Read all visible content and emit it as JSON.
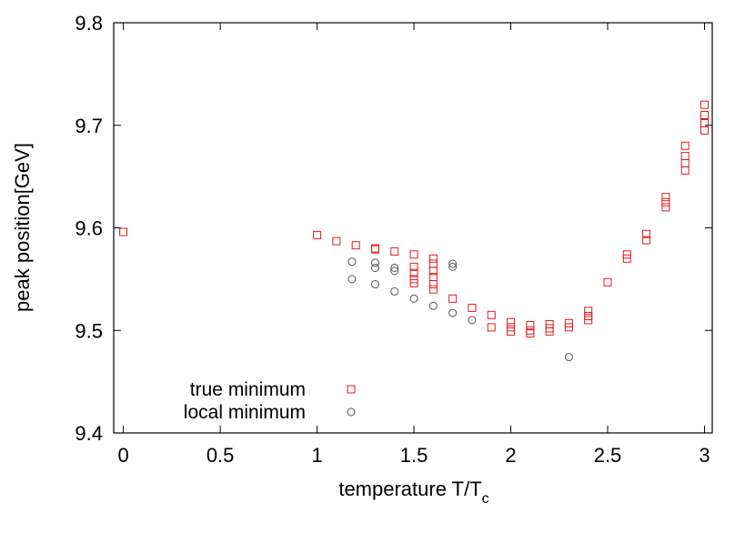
{
  "chart_data": {
    "type": "scatter",
    "xlabel": "temperature T/T",
    "xlabel_subscript": "c",
    "ylabel": "peak position[GeV]",
    "xlim": [
      -0.05,
      3.04
    ],
    "xticks": [
      0,
      0.5,
      1,
      1.5,
      2,
      2.5,
      3
    ],
    "ylim": [
      9.4,
      9.8
    ],
    "yticks": [
      9.4,
      9.5,
      9.6,
      9.7,
      9.8
    ],
    "grid": false,
    "legend": "lower left",
    "series": [
      {
        "name": "true minimum",
        "color": "#e41a1c",
        "marker": "square",
        "x": [
          0,
          1,
          1.1,
          1.2,
          1.3,
          1.3,
          1.4,
          1.5,
          1.5,
          1.5,
          1.5,
          1.5,
          1.6,
          1.6,
          1.6,
          1.6,
          1.6,
          1.6,
          1.7,
          1.8,
          1.9,
          1.9,
          2.0,
          2.0,
          2.0,
          2.1,
          2.1,
          2.1,
          2.2,
          2.2,
          2.2,
          2.3,
          2.3,
          2.4,
          2.4,
          2.4,
          2.5,
          2.6,
          2.6,
          2.7,
          2.7,
          2.8,
          2.8,
          2.8,
          2.9,
          2.9,
          2.9,
          2.9,
          3.0,
          3.0,
          3.0,
          3.0
        ],
        "values": [
          9.596,
          9.593,
          9.587,
          9.583,
          9.58,
          9.579,
          9.577,
          9.574,
          9.562,
          9.556,
          9.55,
          9.546,
          9.57,
          9.565,
          9.558,
          9.552,
          9.545,
          9.54,
          9.531,
          9.522,
          9.515,
          9.503,
          9.508,
          9.503,
          9.499,
          9.505,
          9.5,
          9.497,
          9.506,
          9.502,
          9.499,
          9.507,
          9.503,
          9.519,
          9.514,
          9.51,
          9.547,
          9.574,
          9.57,
          9.594,
          9.588,
          9.63,
          9.625,
          9.62,
          9.68,
          9.67,
          9.663,
          9.656,
          9.72,
          9.71,
          9.702,
          9.695
        ]
      },
      {
        "name": "local minimum",
        "color": "#555555",
        "marker": "circle",
        "x": [
          1.18,
          1.18,
          1.3,
          1.3,
          1.3,
          1.4,
          1.4,
          1.4,
          1.5,
          1.6,
          1.7,
          1.7,
          1.7,
          1.8,
          2.3
        ],
        "values": [
          9.567,
          9.55,
          9.566,
          9.561,
          9.545,
          9.561,
          9.558,
          9.538,
          9.531,
          9.524,
          9.565,
          9.562,
          9.517,
          9.51,
          9.474
        ]
      }
    ]
  }
}
